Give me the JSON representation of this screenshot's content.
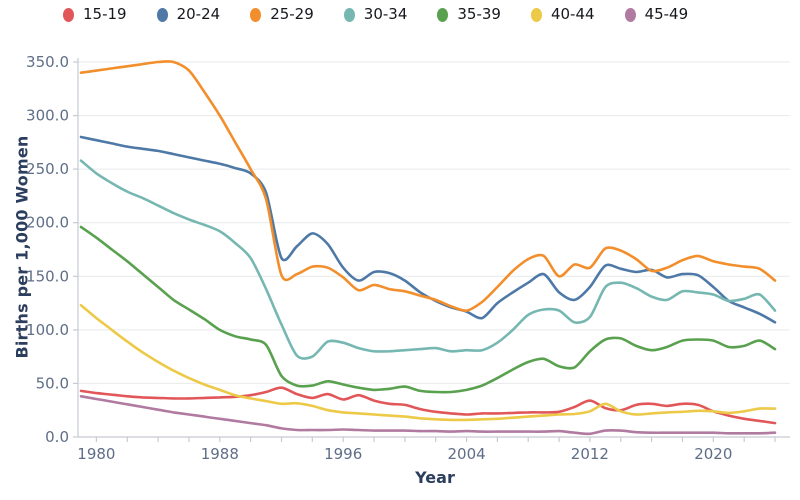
{
  "chart_data": {
    "type": "line",
    "line_shape": "spline",
    "title": "",
    "xlabel": "Year",
    "ylabel": "Births per 1,000 Women",
    "xlim": [
      1979,
      2024
    ],
    "ylim": [
      0,
      350
    ],
    "grid": "horizontal",
    "legend_position": "top",
    "y_ticks": [
      0,
      50,
      100,
      150,
      200,
      250,
      300,
      350
    ],
    "y_tick_labels": [
      "0.0",
      "50.0",
      "100.0",
      "150.0",
      "200.0",
      "250.0",
      "300.0",
      "350.0"
    ],
    "x_major_ticks": [
      1980,
      1988,
      1996,
      2004,
      2012,
      2020
    ],
    "x_major_tick_labels": [
      "1980",
      "1988",
      "1996",
      "2004",
      "2012",
      "2020"
    ],
    "x_minor_ticks": {
      "start": 1980,
      "end": 2024,
      "step": 2
    },
    "x": [
      1979,
      1980,
      1981,
      1982,
      1983,
      1984,
      1985,
      1986,
      1987,
      1988,
      1989,
      1990,
      1991,
      1992,
      1993,
      1994,
      1995,
      1996,
      1997,
      1998,
      1999,
      2000,
      2001,
      2002,
      2003,
      2004,
      2005,
      2006,
      2007,
      2008,
      2009,
      2010,
      2011,
      2012,
      2013,
      2014,
      2015,
      2016,
      2017,
      2018,
      2019,
      2020,
      2021,
      2022,
      2023,
      2024
    ],
    "series": [
      {
        "name": "15-19",
        "color": "#e15759",
        "values": [
          43,
          41,
          39.5,
          38,
          37,
          36.5,
          36,
          36,
          36.5,
          37,
          37.5,
          39,
          42,
          46,
          40,
          36.5,
          40,
          35,
          39,
          34,
          31,
          30,
          26,
          23.5,
          22,
          21,
          22,
          22,
          22.5,
          23,
          23,
          23.5,
          28,
          34,
          27,
          25,
          30,
          31,
          29,
          31,
          30,
          24,
          20,
          17,
          15,
          13
        ]
      },
      {
        "name": "20-24",
        "color": "#4e79a7",
        "values": [
          280,
          277,
          274,
          271,
          269,
          267,
          264,
          261,
          258,
          255,
          251,
          246,
          228,
          167,
          178,
          190,
          180,
          158,
          146,
          154,
          153,
          146,
          135,
          127,
          121,
          117,
          111,
          125,
          135,
          144,
          152,
          135,
          128,
          140,
          160,
          157,
          154,
          156,
          149,
          152,
          151,
          140,
          127,
          121,
          115,
          107
        ]
      },
      {
        "name": "25-29",
        "color": "#f28e2b",
        "values": [
          340,
          342,
          344,
          346,
          348,
          350,
          350,
          342,
          322,
          300,
          275,
          250,
          222,
          151,
          152,
          159,
          158,
          149,
          137,
          142,
          138,
          136,
          132,
          128,
          122,
          118,
          126,
          140,
          155,
          166,
          169,
          150,
          161,
          158,
          176,
          174,
          166,
          155,
          158,
          165,
          169,
          164,
          161,
          159,
          157,
          146
        ]
      },
      {
        "name": "30-34",
        "color": "#76b7b2",
        "values": [
          258,
          246,
          237,
          229,
          223,
          216,
          209,
          203,
          198,
          192,
          181,
          167,
          138,
          105,
          76,
          75,
          89,
          88,
          83,
          80,
          80,
          81,
          82,
          83,
          80,
          81,
          81,
          88,
          100,
          114,
          119,
          118,
          107,
          112,
          140,
          144,
          139,
          131,
          128,
          136,
          135,
          133,
          127,
          129,
          133,
          118
        ]
      },
      {
        "name": "35-39",
        "color": "#59a14f",
        "values": [
          196,
          186,
          175,
          164,
          152,
          140,
          128,
          119,
          110,
          100,
          94,
          91,
          86,
          57,
          48,
          48,
          52,
          49,
          46,
          44,
          45,
          47,
          43,
          42,
          42,
          44,
          48,
          55,
          63,
          70,
          73,
          66,
          65,
          80,
          91,
          92,
          85,
          81,
          84,
          90,
          91,
          90,
          84,
          85,
          90,
          82
        ]
      },
      {
        "name": "40-44",
        "color": "#edc948",
        "values": [
          123,
          111,
          100,
          89,
          79,
          70,
          62,
          55,
          49,
          44,
          39,
          36,
          33.5,
          31,
          31.5,
          29,
          25,
          23,
          22,
          21,
          20,
          19,
          17.5,
          16.5,
          16,
          16,
          16.5,
          17,
          18,
          19,
          20,
          21,
          21.5,
          24,
          31,
          24,
          21,
          22,
          23,
          23.5,
          24.5,
          24,
          22.5,
          24,
          26.5,
          26.5
        ]
      },
      {
        "name": "45-49",
        "color": "#b07aa1",
        "values": [
          38,
          35.5,
          33,
          30.5,
          28,
          25.5,
          23,
          21,
          19,
          17,
          15,
          13,
          11,
          8,
          6.5,
          6.5,
          6.5,
          7,
          6.5,
          6,
          6,
          6,
          5.5,
          5.5,
          5,
          5.5,
          5,
          5,
          5,
          5,
          5,
          5.5,
          4,
          3,
          6,
          6,
          4.5,
          4,
          4,
          4,
          4,
          4,
          3.5,
          3.5,
          3.5,
          4
        ]
      }
    ]
  },
  "styles": {
    "background": "#ffffff",
    "grid_color": "#e7e9ec",
    "axis_color": "#c6cbd2",
    "tick_label_color": "#5f6e87",
    "axis_title_color": "#2c3e5d",
    "legend_label_color": "#16181d"
  }
}
